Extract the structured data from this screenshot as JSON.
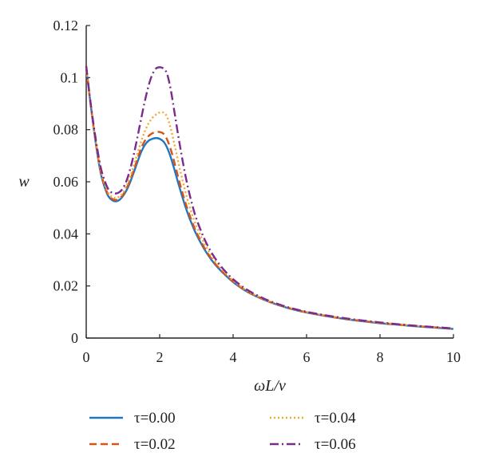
{
  "chart_data": {
    "type": "line",
    "title": "",
    "xlabel": "ωL/ν",
    "ylabel": "w",
    "xlim": [
      0,
      10
    ],
    "ylim": [
      0,
      0.12
    ],
    "xticks": [
      0,
      2,
      4,
      6,
      8,
      10
    ],
    "xtick_labels": [
      "0",
      "2",
      "4",
      "6",
      "8",
      "10"
    ],
    "yticks": [
      0,
      0.02,
      0.04,
      0.06,
      0.08,
      0.1,
      0.12
    ],
    "ytick_labels": [
      "0",
      "0.02",
      "0.04",
      "0.06",
      "0.08",
      "0.1",
      "0.12"
    ],
    "grid": false,
    "legend_position": "bottom",
    "x": [
      0,
      0.1,
      0.2,
      0.3,
      0.4,
      0.5,
      0.6,
      0.7,
      0.8,
      0.9,
      1.0,
      1.1,
      1.2,
      1.3,
      1.4,
      1.5,
      1.6,
      1.7,
      1.8,
      1.9,
      2.0,
      2.1,
      2.2,
      2.3,
      2.4,
      2.5,
      2.6,
      2.7,
      2.8,
      2.9,
      3.0,
      3.2,
      3.4,
      3.6,
      3.8,
      4.0,
      4.3,
      4.6,
      5.0,
      5.5,
      6.0,
      6.5,
      7.0,
      7.5,
      8.0,
      8.5,
      9.0,
      9.5,
      10.0
    ],
    "series": [
      {
        "name": "τ=0.00",
        "color": "#1f77c4",
        "dash": "solid",
        "values": [
          0.104,
          0.092,
          0.081,
          0.071,
          0.063,
          0.058,
          0.0545,
          0.053,
          0.0525,
          0.053,
          0.0545,
          0.0568,
          0.06,
          0.0638,
          0.0678,
          0.0715,
          0.0742,
          0.0758,
          0.0765,
          0.0768,
          0.0765,
          0.0755,
          0.0732,
          0.0695,
          0.0648,
          0.0598,
          0.055,
          0.0505,
          0.0465,
          0.043,
          0.0398,
          0.0345,
          0.0302,
          0.0268,
          0.024,
          0.0215,
          0.0185,
          0.0162,
          0.0138,
          0.0115,
          0.0098,
          0.0085,
          0.0074,
          0.0065,
          0.0057,
          0.0051,
          0.0045,
          0.004,
          0.0035
        ]
      },
      {
        "name": "τ=0.02",
        "color": "#d4541a",
        "dash": "dashed",
        "values": [
          0.104,
          0.092,
          0.0812,
          0.0715,
          0.0635,
          0.0585,
          0.055,
          0.0535,
          0.053,
          0.0535,
          0.055,
          0.0575,
          0.0608,
          0.0648,
          0.069,
          0.073,
          0.0758,
          0.0776,
          0.0786,
          0.0791,
          0.0791,
          0.0785,
          0.0763,
          0.0725,
          0.0675,
          0.062,
          0.0568,
          0.052,
          0.0478,
          0.044,
          0.0406,
          0.0351,
          0.0306,
          0.0271,
          0.0242,
          0.0217,
          0.0186,
          0.0163,
          0.0139,
          0.0116,
          0.0099,
          0.0086,
          0.0075,
          0.0066,
          0.0058,
          0.0052,
          0.0046,
          0.0041,
          0.0036
        ]
      },
      {
        "name": "τ=0.04",
        "color": "#f0a830",
        "dash": "dotted",
        "values": [
          0.104,
          0.0922,
          0.0815,
          0.072,
          0.0642,
          0.0592,
          0.0558,
          0.0542,
          0.0538,
          0.0543,
          0.0558,
          0.0585,
          0.062,
          0.0664,
          0.0711,
          0.0757,
          0.0795,
          0.0825,
          0.0845,
          0.0858,
          0.0866,
          0.0866,
          0.085,
          0.0805,
          0.0745,
          0.068,
          0.062,
          0.0562,
          0.0512,
          0.0468,
          0.043,
          0.0368,
          0.0318,
          0.0279,
          0.0248,
          0.0221,
          0.0189,
          0.0165,
          0.014,
          0.0117,
          0.01,
          0.0087,
          0.0076,
          0.0067,
          0.0059,
          0.0053,
          0.0047,
          0.0042,
          0.0037
        ]
      },
      {
        "name": "τ=0.06",
        "color": "#7b2a8e",
        "dash": "dashdot",
        "values": [
          0.1045,
          0.0925,
          0.082,
          0.0728,
          0.0652,
          0.0605,
          0.0572,
          0.0558,
          0.0555,
          0.056,
          0.0575,
          0.0605,
          0.065,
          0.0708,
          0.0775,
          0.0845,
          0.0912,
          0.097,
          0.1012,
          0.1035,
          0.104,
          0.1035,
          0.1015,
          0.0955,
          0.087,
          0.0782,
          0.07,
          0.0625,
          0.056,
          0.0505,
          0.0458,
          0.0386,
          0.0331,
          0.0288,
          0.0254,
          0.0226,
          0.0193,
          0.0168,
          0.0142,
          0.0118,
          0.0101,
          0.0088,
          0.0077,
          0.0068,
          0.006,
          0.0053,
          0.0047,
          0.0042,
          0.0037
        ]
      }
    ]
  }
}
